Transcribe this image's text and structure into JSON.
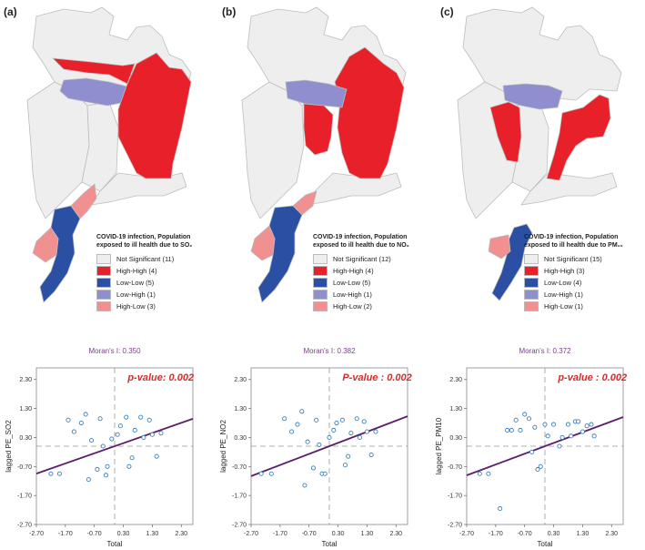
{
  "panels": [
    {
      "letter": "(a)",
      "legend_title_1": "COVID-19 infection, Population",
      "legend_title_2": "exposed to ill health due to SO₂",
      "legend": [
        {
          "label": "Not Significant (11)",
          "color": "#eeeeee"
        },
        {
          "label": "High-High (4)",
          "color": "#e8202a"
        },
        {
          "label": "Low-Low (5)",
          "color": "#2a4fa3"
        },
        {
          "label": "Low-High (1)",
          "color": "#8f8fd0"
        },
        {
          "label": "High-Low (3)",
          "color": "#f09090"
        }
      ]
    },
    {
      "letter": "(b)",
      "legend_title_1": "COVID-19 infection, Population",
      "legend_title_2": "exposed to ill health due to NO₂",
      "legend": [
        {
          "label": "Not Significant (12)",
          "color": "#eeeeee"
        },
        {
          "label": "High-High (4)",
          "color": "#e8202a"
        },
        {
          "label": "Low-Low (5)",
          "color": "#2a4fa3"
        },
        {
          "label": "Low-High (1)",
          "color": "#8f8fd0"
        },
        {
          "label": "High-Low (2)",
          "color": "#f09090"
        }
      ]
    },
    {
      "letter": "(c)",
      "legend_title_1": "COVID-19 infection, Population",
      "legend_title_2": "exposed to ill health due to PM₁₀",
      "legend": [
        {
          "label": "Not Significant (15)",
          "color": "#eeeeee"
        },
        {
          "label": "High-High (3)",
          "color": "#e8202a"
        },
        {
          "label": "Low-Low (4)",
          "color": "#2a4fa3"
        },
        {
          "label": "Low-High (1)",
          "color": "#8f8fd0"
        },
        {
          "label": "High-Low (1)",
          "color": "#f09090"
        }
      ]
    }
  ],
  "chart_data": [
    {
      "type": "scatter",
      "title": "Moran's I: 0.350",
      "annotation": "p-value: 0.002",
      "xlabel": "Total",
      "ylabel": "lagged PE_SO2",
      "xlim": [
        -2.7,
        2.7
      ],
      "ylim": [
        -2.7,
        2.7
      ],
      "xticks": [
        "-2.70",
        "-1.70",
        "-0.70",
        "0.30",
        "1.30",
        "2.30"
      ],
      "yticks": [
        "2.30",
        "1.30",
        "0.30",
        "-0.70",
        "-1.70",
        "-2.70"
      ],
      "slope": 0.35,
      "intercept": 0.0,
      "points": [
        [
          -2.2,
          -0.95
        ],
        [
          -1.9,
          -0.95
        ],
        [
          -1.6,
          0.9
        ],
        [
          -1.4,
          0.5
        ],
        [
          -1.15,
          0.8
        ],
        [
          -1.0,
          1.1
        ],
        [
          -0.9,
          -1.15
        ],
        [
          -0.8,
          0.2
        ],
        [
          -0.6,
          -0.8
        ],
        [
          -0.5,
          0.95
        ],
        [
          -0.4,
          0.0
        ],
        [
          -0.3,
          -1.0
        ],
        [
          -0.25,
          -0.7
        ],
        [
          -0.1,
          0.25
        ],
        [
          0.1,
          0.4
        ],
        [
          0.2,
          0.7
        ],
        [
          0.4,
          1.0
        ],
        [
          0.5,
          -0.7
        ],
        [
          0.6,
          -0.4
        ],
        [
          0.7,
          0.55
        ],
        [
          0.9,
          1.0
        ],
        [
          1.0,
          0.3
        ],
        [
          1.2,
          0.9
        ],
        [
          1.3,
          0.4
        ],
        [
          1.45,
          -0.35
        ],
        [
          1.6,
          0.45
        ]
      ]
    },
    {
      "type": "scatter",
      "title": "Moran's I: 0.382",
      "annotation": "P-value : 0.002",
      "xlabel": "Total",
      "ylabel": "lagged PE_NO2",
      "xlim": [
        -2.7,
        2.7
      ],
      "ylim": [
        -2.7,
        2.7
      ],
      "xticks": [
        "-2.70",
        "-1.70",
        "-0.70",
        "0.30",
        "1.30",
        "2.30"
      ],
      "yticks": [
        "2.30",
        "1.30",
        "0.30",
        "-0.70",
        "-1.70",
        "-2.70"
      ],
      "slope": 0.382,
      "intercept": 0.0,
      "points": [
        [
          -2.35,
          -0.95
        ],
        [
          -2.0,
          -0.95
        ],
        [
          -1.55,
          0.95
        ],
        [
          -1.3,
          0.5
        ],
        [
          -1.1,
          0.75
        ],
        [
          -0.95,
          1.2
        ],
        [
          -0.85,
          -1.35
        ],
        [
          -0.75,
          0.15
        ],
        [
          -0.55,
          -0.75
        ],
        [
          -0.45,
          0.9
        ],
        [
          -0.35,
          0.05
        ],
        [
          -0.25,
          -0.95
        ],
        [
          -0.15,
          -0.95
        ],
        [
          0.0,
          0.3
        ],
        [
          0.15,
          0.55
        ],
        [
          0.25,
          0.8
        ],
        [
          0.45,
          0.9
        ],
        [
          0.55,
          -0.65
        ],
        [
          0.65,
          -0.35
        ],
        [
          0.75,
          0.45
        ],
        [
          0.95,
          0.95
        ],
        [
          1.05,
          0.3
        ],
        [
          1.2,
          0.85
        ],
        [
          1.3,
          0.5
        ],
        [
          1.45,
          -0.3
        ],
        [
          1.6,
          0.5
        ]
      ]
    },
    {
      "type": "scatter",
      "title": "Moran's I: 0.372",
      "annotation": "p-value : 0.002",
      "xlabel": "Total",
      "ylabel": "lagged PE_PM10",
      "xlim": [
        -2.7,
        2.7
      ],
      "ylim": [
        -2.7,
        2.7
      ],
      "xticks": [
        "-2.70",
        "-1.70",
        "-0.70",
        "0.30",
        "1.30",
        "2.30"
      ],
      "yticks": [
        "2.30",
        "1.30",
        "0.30",
        "-0.70",
        "-1.70",
        "-2.70"
      ],
      "slope": 0.372,
      "intercept": 0.0,
      "points": [
        [
          -2.25,
          -0.95
        ],
        [
          -1.95,
          -0.95
        ],
        [
          -1.55,
          -2.15
        ],
        [
          -1.3,
          0.55
        ],
        [
          -1.15,
          0.55
        ],
        [
          -1.0,
          0.9
        ],
        [
          -0.85,
          0.55
        ],
        [
          -0.7,
          1.1
        ],
        [
          -0.55,
          0.95
        ],
        [
          -0.45,
          -0.2
        ],
        [
          -0.35,
          0.65
        ],
        [
          -0.25,
          -0.8
        ],
        [
          -0.15,
          -0.7
        ],
        [
          0.0,
          0.75
        ],
        [
          0.1,
          0.35
        ],
        [
          0.3,
          0.75
        ],
        [
          0.5,
          0.0
        ],
        [
          0.6,
          0.3
        ],
        [
          0.8,
          0.75
        ],
        [
          0.9,
          0.35
        ],
        [
          1.05,
          0.85
        ],
        [
          1.15,
          0.85
        ],
        [
          1.3,
          0.5
        ],
        [
          1.45,
          0.7
        ],
        [
          1.6,
          0.75
        ],
        [
          1.7,
          0.35
        ]
      ]
    }
  ]
}
